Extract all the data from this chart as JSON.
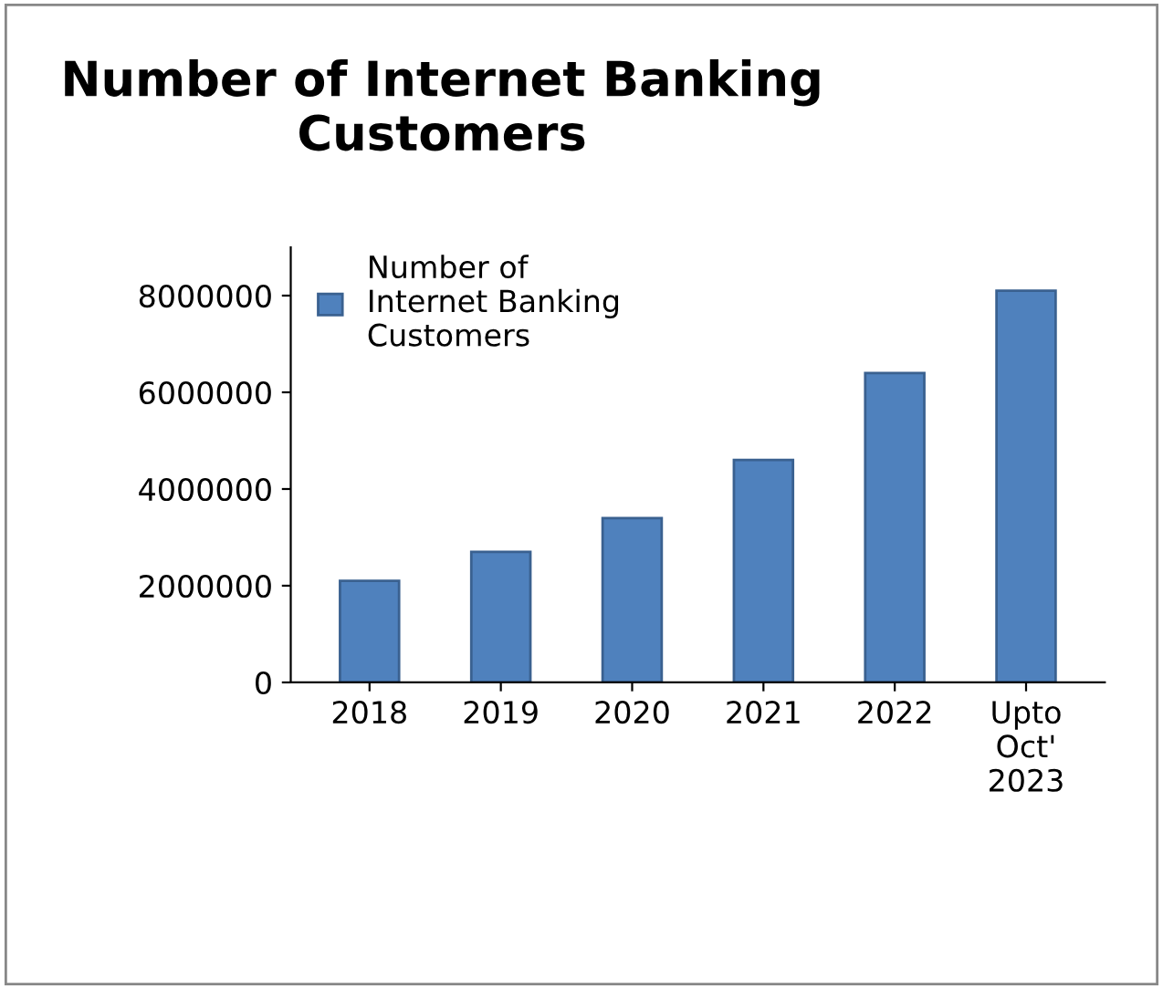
{
  "chart_data": {
    "type": "bar",
    "title": "Number of Internet Banking Customers",
    "categories": [
      "2018",
      "2019",
      "2020",
      "2021",
      "2022",
      "Upto\nOct'\n2023"
    ],
    "series": [
      {
        "name": "Number of\nInternet Banking\nCustomers",
        "color": "#4f81bd",
        "values": [
          2100000,
          2700000,
          3400000,
          4600000,
          6400000,
          8100000
        ]
      }
    ],
    "ylim": [
      0,
      9000000
    ],
    "yticks": [
      0,
      2000000,
      4000000,
      6000000,
      8000000
    ],
    "grid": false,
    "legend": "top left"
  }
}
